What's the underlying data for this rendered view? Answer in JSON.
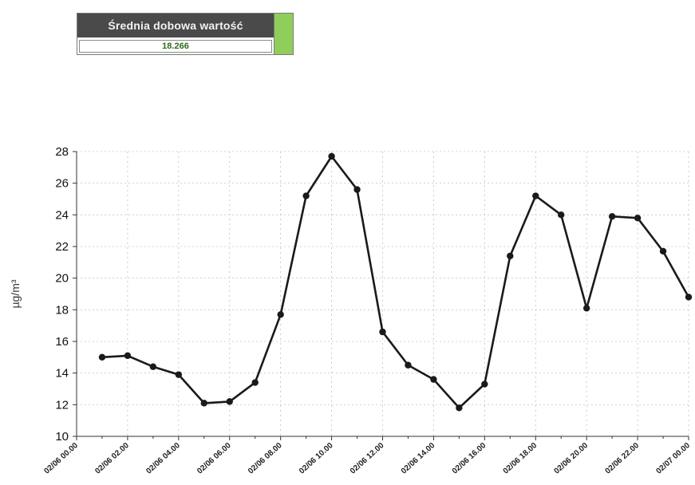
{
  "stat_box": {
    "label": "Średnia dobowa wartość",
    "value": "18.266",
    "swatch_color": "#8fce5a",
    "header_color": "#4a4a4a"
  },
  "chart_data": {
    "type": "line",
    "title": "",
    "xlabel": "",
    "ylabel": "µg/m³",
    "ylim": [
      10,
      28
    ],
    "yticks": [
      10,
      12,
      14,
      16,
      18,
      20,
      22,
      24,
      26,
      28
    ],
    "grid": true,
    "legend": "none",
    "x_tick_labels": [
      "02/06 00.00",
      "02/06 02.00",
      "02/06 04.00",
      "02/06 06.00",
      "02/06 08.00",
      "02/06 10.00",
      "02/06 12.00",
      "02/06 14.00",
      "02/06 16.00",
      "02/06 18.00",
      "02/06 20.00",
      "02/06 22.00",
      "02/07 00.00"
    ],
    "x": [
      1,
      2,
      3,
      4,
      5,
      6,
      7,
      8,
      9,
      10,
      11,
      12,
      13,
      14,
      15,
      16,
      17,
      18,
      19,
      20,
      21,
      22,
      23,
      24
    ],
    "series": [
      {
        "color": "#1a1a1a",
        "values": [
          15.0,
          15.1,
          14.4,
          13.9,
          12.1,
          12.2,
          13.4,
          17.7,
          25.2,
          27.7,
          25.6,
          16.6,
          14.5,
          13.6,
          11.8,
          13.3,
          21.4,
          25.2,
          24.0,
          18.1,
          23.9,
          23.8,
          21.7,
          18.8
        ]
      }
    ]
  }
}
